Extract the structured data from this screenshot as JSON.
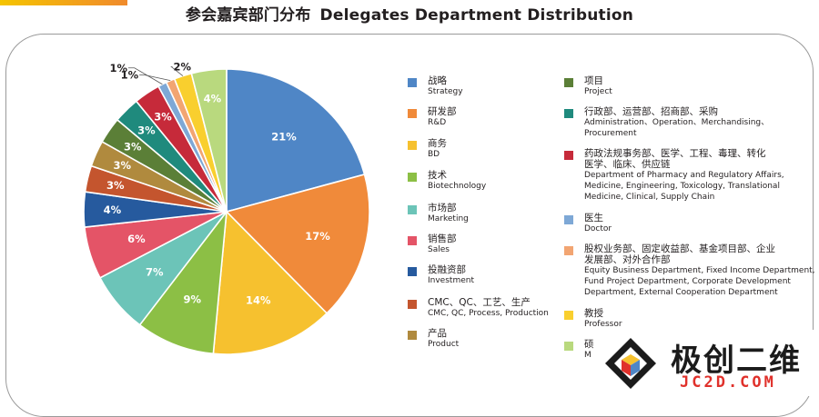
{
  "title": {
    "zh": "参会嘉宾部门分布",
    "en": "Delegates Department Distribution"
  },
  "chart_data": {
    "type": "pie",
    "title": "参会嘉宾部门分布 Delegates Department Distribution",
    "start_angle_deg": 0,
    "direction": "clockwise",
    "slices": [
      {
        "zh": "战略",
        "en": "Strategy",
        "value": 21,
        "label": "21%",
        "color": "#4f86c6"
      },
      {
        "zh": "研发部",
        "en": "R&D",
        "value": 17,
        "label": "17%",
        "color": "#f08a3a"
      },
      {
        "zh": "商务",
        "en": "BD",
        "value": 14,
        "label": "14%",
        "color": "#f6c12f"
      },
      {
        "zh": "技术",
        "en": "Biotechnology",
        "value": 9,
        "label": "9%",
        "color": "#8cbf45"
      },
      {
        "zh": "市场部",
        "en": "Marketing",
        "value": 7,
        "label": "7%",
        "color": "#6cc4b8"
      },
      {
        "zh": "销售部",
        "en": "Sales",
        "value": 6,
        "label": "6%",
        "color": "#e45467"
      },
      {
        "zh": "投融资部",
        "en": "Investment",
        "value": 4,
        "label": "4%",
        "color": "#265a9e"
      },
      {
        "zh": "CMC、QC、工艺、生产",
        "en": "CMC, QC, Process, Production",
        "value": 3,
        "label": "3%",
        "color": "#c4552e"
      },
      {
        "zh": "产品",
        "en": "Product",
        "value": 3,
        "label": "3%",
        "color": "#b08a3e"
      },
      {
        "zh": "项目",
        "en": "Project",
        "value": 3,
        "label": "3%",
        "color": "#5b7f37"
      },
      {
        "zh": "行政部、运营部、招商部、采购",
        "en": "Administration、Operation、Merchandising、Procurement",
        "value": 3,
        "label": "3%",
        "color": "#1f8a7d"
      },
      {
        "zh": "药政法规事务部、医学、工程、毒理、转化医学、临床、供应链",
        "en": "Department of Pharmacy and Regulatory Affairs, Medicine, Engineering, Toxicology, Translational Medicine, Clinical, Supply Chain",
        "value": 3,
        "label": "3%",
        "color": "#c62a3a"
      },
      {
        "zh": "医生",
        "en": "Doctor",
        "value": 1,
        "label": "1%",
        "color": "#7ea8d6"
      },
      {
        "zh": "股权业务部、固定收益部、基金项目部、企业发展部、对外合作部",
        "en": "Equity Business Department, Fixed Income Department, Fund Project Department, Corporate Development Department, External Cooperation Department",
        "value": 1,
        "label": "1%",
        "color": "#f2a572"
      },
      {
        "zh": "教授",
        "en": "Professor",
        "value": 2,
        "label": "2%",
        "color": "#f9cf2e"
      },
      {
        "zh": "硕",
        "en": "M",
        "value": 4,
        "label": "4%",
        "color": "#b9d97e"
      }
    ]
  },
  "legend": {
    "col1": [
      {
        "zh": "战略",
        "en": "Strategy",
        "color": "#4f86c6"
      },
      {
        "zh": "研发部",
        "en": "R&D",
        "color": "#f08a3a"
      },
      {
        "zh": "商务",
        "en": "BD",
        "color": "#f6c12f"
      },
      {
        "zh": "技术",
        "en": "Biotechnology",
        "color": "#8cbf45"
      },
      {
        "zh": "市场部",
        "en": "Marketing",
        "color": "#6cc4b8"
      },
      {
        "zh": "销售部",
        "en": "Sales",
        "color": "#e45467"
      },
      {
        "zh": "投融资部",
        "en": "Investment",
        "color": "#265a9e"
      },
      {
        "zh": "CMC、QC、工艺、生产",
        "en": "CMC, QC, Process, Production",
        "color": "#c4552e"
      },
      {
        "zh": "产品",
        "en": "Product",
        "color": "#b08a3e"
      }
    ],
    "col2": [
      {
        "zh": "项目",
        "en": "Project",
        "color": "#5b7f37"
      },
      {
        "zh": "行政部、运营部、招商部、采购",
        "en": "Administration、Operation、Merchandising、\nProcurement",
        "color": "#1f8a7d"
      },
      {
        "zh": "药政法规事务部、医学、工程、毒理、转化\n医学、临床、供应链",
        "en": "Department of Pharmacy and Regulatory Affairs,\nMedicine, Engineering, Toxicology, Translational\nMedicine, Clinical, Supply Chain",
        "color": "#c62a3a"
      },
      {
        "zh": "医生",
        "en": "Doctor",
        "color": "#7ea8d6"
      },
      {
        "zh": "股权业务部、固定收益部、基金项目部、企业\n发展部、对外合作部",
        "en": "Equity Business Department, Fixed Income Department,\nFund Project Department, Corporate Development\nDepartment, External Cooperation Department",
        "color": "#f2a572"
      },
      {
        "zh": "教授",
        "en": "Professor",
        "color": "#f9cf2e"
      },
      {
        "zh": "硕",
        "en": "M",
        "color": "#b9d97e"
      }
    ]
  },
  "watermark": {
    "cn": "极创二维",
    "en": "JC2D.COM"
  }
}
